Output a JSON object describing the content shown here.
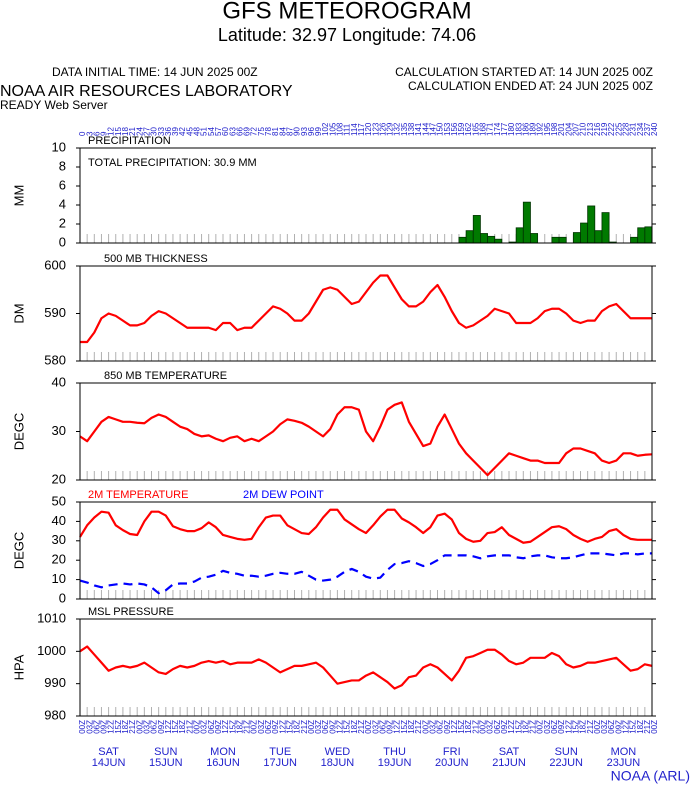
{
  "header": {
    "title": "GFS METEOROGRAM",
    "subtitle": "Latitude: 32.97 Longitude:  74.06",
    "initial_time": "DATA INITIAL TIME: 14 JUN 2025 00Z",
    "calc_started": "CALCULATION STARTED AT: 14 JUN 2025 00Z",
    "calc_ended": "CALCULATION ENDED AT: 24 JUN 2025 00Z",
    "lab": "NOAA AIR RESOURCES LABORATORY",
    "server": "READY Web Server",
    "credit": "NOAA (ARL)"
  },
  "x_axis": {
    "xlim": [
      0,
      240
    ],
    "forecast_hours": [
      0,
      3,
      6,
      9,
      12,
      15,
      18,
      21,
      24,
      27,
      30,
      33,
      36,
      39,
      42,
      45,
      48,
      51,
      54,
      57,
      60,
      63,
      66,
      69,
      72,
      75,
      78,
      81,
      84,
      87,
      90,
      93,
      96,
      99,
      102,
      105,
      108,
      111,
      114,
      117,
      120,
      123,
      126,
      129,
      132,
      135,
      138,
      141,
      144,
      147,
      150,
      153,
      156,
      159,
      162,
      165,
      168,
      171,
      174,
      177,
      180,
      183,
      186,
      189,
      192,
      195,
      198,
      201,
      204,
      207,
      210,
      213,
      216,
      219,
      222,
      225,
      228,
      231,
      234,
      237,
      240
    ],
    "utc_labels": [
      "00Z",
      "03Z",
      "06Z",
      "09Z",
      "12Z",
      "15Z",
      "18Z",
      "21Z",
      "00Z",
      "03Z",
      "06Z",
      "09Z",
      "12Z",
      "15Z",
      "18Z",
      "21Z",
      "00Z",
      "03Z",
      "06Z",
      "09Z",
      "12Z",
      "15Z",
      "18Z",
      "21Z",
      "00Z",
      "03Z",
      "06Z",
      "09Z",
      "12Z",
      "15Z",
      "18Z",
      "21Z",
      "00Z",
      "03Z",
      "06Z",
      "09Z",
      "12Z",
      "15Z",
      "18Z",
      "21Z",
      "00Z",
      "03Z",
      "06Z",
      "09Z",
      "12Z",
      "15Z",
      "18Z",
      "21Z",
      "00Z",
      "03Z",
      "06Z",
      "09Z",
      "12Z",
      "15Z",
      "18Z",
      "21Z",
      "00Z",
      "03Z",
      "06Z",
      "09Z",
      "12Z",
      "15Z",
      "18Z",
      "21Z",
      "00Z",
      "03Z",
      "06Z",
      "09Z",
      "12Z",
      "15Z",
      "18Z",
      "21Z",
      "00Z",
      "03Z",
      "06Z",
      "09Z",
      "12Z",
      "15Z",
      "18Z",
      "21Z",
      "00Z"
    ],
    "days": [
      {
        "name": "SAT",
        "date": "14JUN"
      },
      {
        "name": "SUN",
        "date": "15JUN"
      },
      {
        "name": "MON",
        "date": "16JUN"
      },
      {
        "name": "TUE",
        "date": "17JUN"
      },
      {
        "name": "WED",
        "date": "18JUN"
      },
      {
        "name": "THU",
        "date": "19JUN"
      },
      {
        "name": "FRI",
        "date": "20JUN"
      },
      {
        "name": "SAT",
        "date": "21JUN"
      },
      {
        "name": "SUN",
        "date": "22JUN"
      },
      {
        "name": "MON",
        "date": "23JUN"
      }
    ]
  },
  "chart_data": [
    {
      "type": "bar",
      "title": "PRECIPITATION",
      "annotation": "TOTAL PRECIPITATION:  30.9 MM",
      "ylabel": "MM",
      "ylim": [
        0,
        10
      ],
      "yticks": [
        0,
        2,
        4,
        6,
        8,
        10
      ],
      "series": [
        {
          "color": "#007a00",
          "values": [
            0,
            0,
            0,
            0,
            0,
            0,
            0,
            0,
            0,
            0,
            0,
            0,
            0,
            0,
            0,
            0,
            0,
            0,
            0,
            0,
            0,
            0,
            0,
            0,
            0,
            0,
            0,
            0,
            0,
            0,
            0,
            0,
            0,
            0,
            0,
            0,
            0,
            0,
            0,
            0,
            0,
            0,
            0,
            0,
            0,
            0,
            0,
            0,
            0,
            0,
            0,
            0,
            0,
            0,
            0.6,
            1.3,
            2.9,
            1.0,
            0.7,
            0.4,
            0,
            0.1,
            1.6,
            4.3,
            1.0,
            0,
            0,
            0.6,
            0.6,
            0,
            1.1,
            2.1,
            3.9,
            1.3,
            3.2,
            0.1,
            0,
            0,
            0.6,
            1.6,
            1.7
          ]
        }
      ]
    },
    {
      "type": "line",
      "title": "500 MB  THICKNESS",
      "ylabel": "DM",
      "ylim": [
        580,
        600
      ],
      "yticks": [
        580,
        590,
        600
      ],
      "series": [
        {
          "color": "#ff0000",
          "values": [
            584,
            584,
            586,
            589,
            590,
            589.5,
            588.5,
            587.5,
            587.5,
            588,
            589.5,
            590.5,
            590,
            589,
            588,
            587,
            587,
            587,
            587,
            586.5,
            588,
            588,
            586.5,
            587,
            587,
            588.5,
            590,
            591.5,
            591,
            590,
            588.5,
            588.5,
            590,
            592.5,
            595,
            595.5,
            595,
            593.5,
            592,
            592.5,
            594.5,
            596.5,
            598,
            598,
            595.5,
            593,
            591.5,
            591.5,
            592.5,
            594.5,
            596,
            593.5,
            590.5,
            588,
            587,
            587.5,
            588.5,
            589.5,
            591,
            590.5,
            590,
            588,
            588,
            588,
            589,
            590.5,
            591,
            591,
            590,
            588.5,
            588,
            588.5,
            588.5,
            590.5,
            591.5,
            592,
            590.5,
            589,
            589,
            589,
            589
          ]
        }
      ]
    },
    {
      "type": "line",
      "title": "850 MB  TEMPERATURE",
      "ylabel": "DEGC",
      "ylim": [
        20,
        40
      ],
      "yticks": [
        20,
        30,
        40
      ],
      "series": [
        {
          "color": "#ff0000",
          "values": [
            29,
            28,
            30,
            32,
            33,
            32.5,
            32,
            32,
            31.8,
            31.7,
            32.8,
            33.5,
            33,
            32,
            31,
            30.5,
            29.5,
            29,
            29.2,
            28.5,
            28,
            28.7,
            29,
            28,
            28.5,
            28,
            29,
            30,
            31.5,
            32.5,
            32.2,
            31.8,
            31,
            30,
            29,
            30.5,
            33.5,
            35,
            35,
            34.5,
            30,
            28,
            31,
            34.5,
            35.5,
            36,
            32,
            29.5,
            27,
            27.5,
            31,
            33.5,
            30.5,
            27.5,
            25.5,
            24,
            22.5,
            21,
            22.5,
            24,
            25.5,
            25,
            24.5,
            24,
            24,
            23.5,
            23.5,
            23.5,
            25.5,
            26.5,
            26.5,
            26,
            25.5,
            24,
            23.5,
            24,
            25.5,
            25.5,
            25,
            25.2,
            25.3
          ]
        }
      ]
    },
    {
      "type": "line",
      "ylabel": "DEGC",
      "ylim": [
        0,
        50
      ],
      "yticks": [
        0,
        10,
        20,
        30,
        40,
        50
      ],
      "series": [
        {
          "name": "2M TEMPERATURE",
          "color": "#ff0000",
          "values": [
            32,
            38,
            42,
            45,
            44.5,
            38,
            35.5,
            33.5,
            33,
            40,
            45,
            45,
            43,
            37.5,
            36,
            35,
            35,
            36.5,
            39.5,
            37,
            33,
            32,
            31,
            30.5,
            31,
            37,
            42,
            43,
            43,
            38,
            36,
            34,
            33.5,
            37,
            42,
            46,
            46,
            41,
            38.5,
            36,
            34,
            38,
            42.5,
            46,
            46,
            41.5,
            39.5,
            37,
            34,
            37,
            43,
            44,
            41,
            34,
            31,
            29.5,
            30,
            34,
            34.5,
            37,
            33,
            31,
            29,
            29.5,
            32,
            34.5,
            37,
            37.5,
            36,
            33,
            31,
            29.5,
            31,
            32,
            35,
            36,
            33,
            31,
            30.5,
            30.5,
            30.5
          ]
        },
        {
          "name": "2M  DEW POINT",
          "color": "#0000ff",
          "dashed": true,
          "values": [
            9.5,
            8.5,
            7,
            6,
            7,
            7.5,
            8,
            7.5,
            8,
            7.5,
            6,
            3,
            4.5,
            7.5,
            8,
            8,
            9,
            11,
            11.5,
            12.5,
            14.5,
            13.5,
            13,
            12,
            12,
            11.5,
            12,
            13,
            13.5,
            13,
            13,
            14,
            12,
            10,
            9.5,
            10,
            11.5,
            14,
            15.5,
            14,
            11.5,
            10.5,
            11,
            15,
            18,
            18.5,
            19.5,
            18.5,
            17,
            18,
            20,
            22.5,
            22.5,
            22.5,
            22.5,
            22,
            21,
            22,
            22.5,
            22.5,
            22.5,
            21.5,
            21,
            22,
            22.5,
            22.5,
            21.5,
            21,
            21,
            21.5,
            22.5,
            23.5,
            23.5,
            23.5,
            23,
            22.5,
            23.5,
            23.5,
            23,
            23.5,
            23.5
          ]
        }
      ]
    },
    {
      "type": "line",
      "title": "MSL PRESSURE",
      "ylabel": "HPA",
      "ylim": [
        980,
        1010
      ],
      "yticks": [
        980,
        990,
        1000,
        1010
      ],
      "series": [
        {
          "color": "#ff0000",
          "values": [
            1000,
            1001.5,
            999,
            996.5,
            994,
            995,
            995.5,
            995,
            995.5,
            996.5,
            995,
            993.5,
            993,
            994.5,
            995.5,
            995,
            995.5,
            996.5,
            997,
            996.5,
            997,
            996,
            996.5,
            996.5,
            996.5,
            997.5,
            996.5,
            995,
            993.5,
            994.5,
            995.5,
            995.5,
            996,
            996.5,
            995,
            992.5,
            990,
            990.5,
            991,
            991,
            992.5,
            993.5,
            992,
            990.5,
            988.5,
            989.5,
            992,
            992.5,
            995,
            996,
            995,
            993,
            991,
            994,
            998,
            998.5,
            999.5,
            1000.5,
            1000.5,
            999,
            997,
            996,
            996.5,
            998,
            998,
            998,
            999.5,
            998.5,
            996,
            995,
            995.5,
            996.5,
            996.5,
            997,
            997.5,
            998,
            996,
            994,
            994.5,
            996,
            995.5
          ]
        }
      ]
    }
  ]
}
